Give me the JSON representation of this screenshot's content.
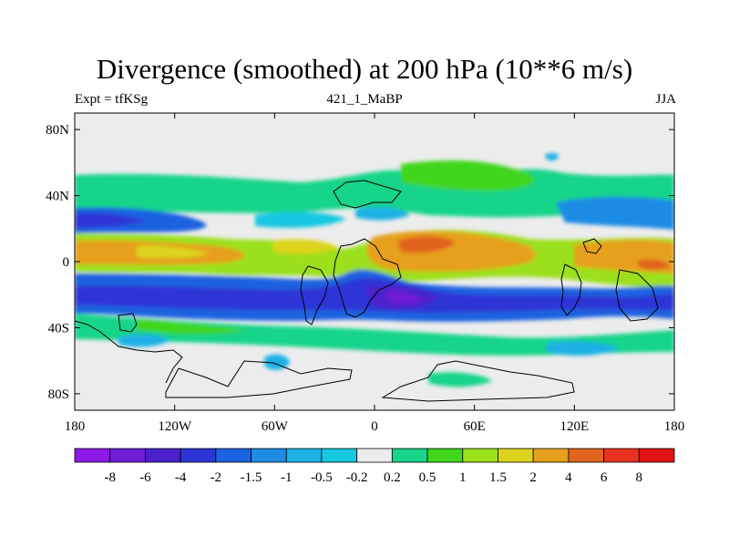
{
  "title": "Divergence (smoothed) at 200 hPa (10**6 m/s)",
  "subtitle_left": "Expt = tfKSg",
  "subtitle_center": "421_1_MaBP",
  "subtitle_right": "JJA",
  "chart_data": {
    "type": "heatmap",
    "variable": "Divergence (smoothed) at 200 hPa",
    "units": "10**6 m/s",
    "season": "JJA",
    "x_range": [
      -180,
      180
    ],
    "y_range": [
      -90,
      90
    ],
    "x_ticks": [
      {
        "value": -180,
        "label": "180"
      },
      {
        "value": -120,
        "label": "120W"
      },
      {
        "value": -60,
        "label": "60W"
      },
      {
        "value": 0,
        "label": "0"
      },
      {
        "value": 60,
        "label": "60E"
      },
      {
        "value": 120,
        "label": "120E"
      },
      {
        "value": 180,
        "label": "180"
      }
    ],
    "y_ticks": [
      {
        "value": 80,
        "label": "80N"
      },
      {
        "value": 40,
        "label": "40N"
      },
      {
        "value": 0,
        "label": "0"
      },
      {
        "value": -40,
        "label": "40S"
      },
      {
        "value": -80,
        "label": "80S"
      }
    ],
    "colorbar": {
      "labels": [
        "-8",
        "-6",
        "-4",
        "-2",
        "-1.5",
        "-1",
        "-0.5",
        "-0.2",
        "0.2",
        "0.5",
        "1",
        "1.5",
        "2",
        "4",
        "6",
        "8"
      ],
      "colors": [
        "#8c19e6",
        "#6f1ed6",
        "#4b20cc",
        "#2d35d6",
        "#1d62e0",
        "#1e8be4",
        "#1eb1e4",
        "#16c8e0",
        "#ececec",
        "#18d48a",
        "#41d61c",
        "#9be01a",
        "#dcd41c",
        "#e6a01e",
        "#e0641e",
        "#e6321e",
        "#e01414"
      ]
    },
    "fields": [
      {
        "lat_range": [
          51,
          90
        ],
        "value": 0,
        "description": "near-zero (grey) polar north"
      },
      {
        "lat_range": [
          35,
          51
        ],
        "value": 0.7,
        "description": "positive mid-latitude band (green)"
      },
      {
        "lat_range": [
          18,
          30
        ],
        "value": -1.2,
        "description": "negative band (blue) in Pacific"
      },
      {
        "lat_range": [
          -8,
          18
        ],
        "value": 2.5,
        "description": "tropical divergence maximum (orange/yellow), strongest near 30E"
      },
      {
        "lat_range": [
          -32,
          -8
        ],
        "value": -3,
        "description": "subtropical convergence (deep blue), strongest near 15E, 30S"
      },
      {
        "lat_range": [
          -45,
          -32
        ],
        "value": 0.7,
        "description": "southern positive band (green)"
      },
      {
        "lat_range": [
          -65,
          -45
        ],
        "value": -0.6,
        "description": "weak negative patches (light blue)"
      },
      {
        "lat_range": [
          -90,
          -65
        ],
        "value": 0,
        "description": "near-zero (grey) polar south"
      }
    ]
  }
}
